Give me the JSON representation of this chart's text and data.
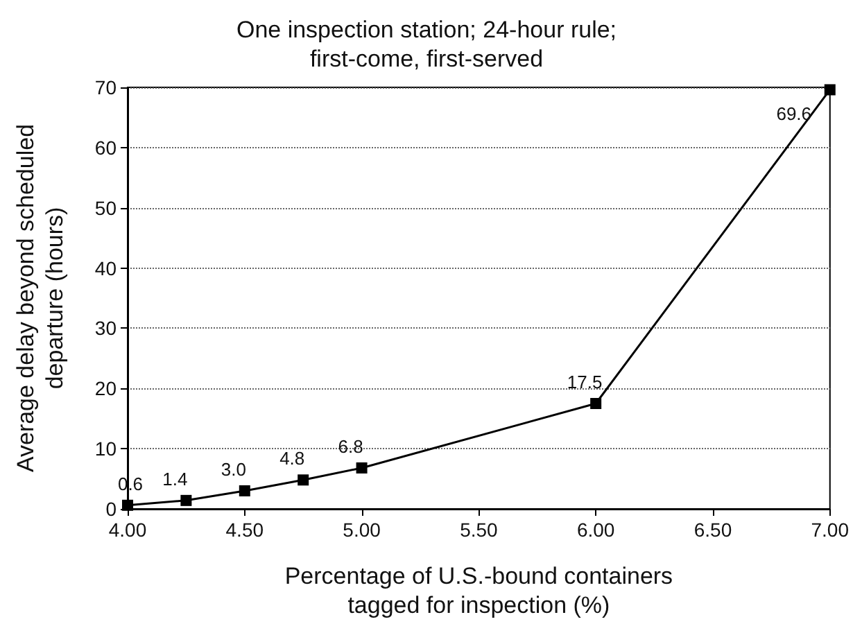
{
  "chart_data": {
    "type": "line",
    "title": "One inspection station; 24-hour rule;\nfirst-come, first-served",
    "xlabel": "Percentage of U.S.-bound containers\ntagged for inspection (%)",
    "ylabel": "Average delay beyond scheduled\ndeparture (hours)",
    "x": [
      4.0,
      4.25,
      4.5,
      4.75,
      5.0,
      6.0,
      7.0
    ],
    "series": [
      {
        "color": "#000000",
        "values": [
          0.6,
          1.4,
          3.0,
          4.8,
          6.8,
          17.5,
          69.6
        ],
        "value_labels": [
          "0.6",
          "1.4",
          "3.0",
          "4.8",
          "6.8",
          "17.5",
          "69.6"
        ]
      }
    ],
    "xlim": [
      4,
      7
    ],
    "xticks": [
      {
        "value": 4,
        "label": "4.00"
      },
      {
        "value": 4.5,
        "label": "4.50"
      },
      {
        "value": 5,
        "label": "5.00"
      },
      {
        "value": 5.5,
        "label": "5.50"
      },
      {
        "value": 6,
        "label": "6.00"
      },
      {
        "value": 6.5,
        "label": "6.50"
      },
      {
        "value": 7,
        "label": "7.00"
      }
    ],
    "ylim": [
      0,
      70
    ],
    "yticks": [
      0,
      10,
      20,
      30,
      40,
      50,
      60,
      70
    ],
    "grid": "y",
    "marker": "square",
    "line_style": "solid"
  }
}
